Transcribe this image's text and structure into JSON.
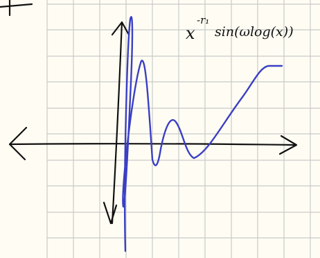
{
  "annotation": {
    "base": "x",
    "exponent": "-r₁",
    "function": "sin(ωlog(x))"
  }
}
